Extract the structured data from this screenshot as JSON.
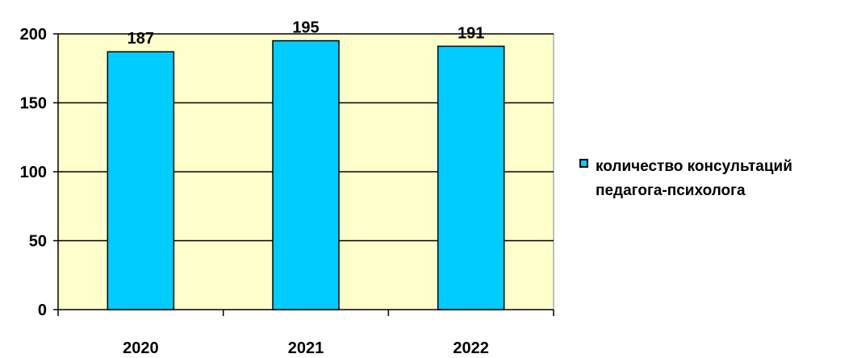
{
  "chart_data": {
    "type": "bar",
    "categories": [
      "2020",
      "2021",
      "2022"
    ],
    "series": [
      {
        "name": "количество консультаций педагога-психолога",
        "values": [
          187,
          195,
          191
        ]
      }
    ],
    "data_labels": [
      "187",
      "195",
      "191"
    ],
    "y_ticks": [
      "0",
      "50",
      "100",
      "150",
      "200"
    ],
    "ylim": [
      0,
      200
    ],
    "grid": true,
    "legend_position": "right",
    "colors": {
      "bar_fill": "#00CCFF",
      "bar_stroke": "#000000",
      "plot_background": "#FFFFCC",
      "gridline": "#000000"
    }
  },
  "legend": {
    "label": "количество консультаций\nпедагога-психолога"
  }
}
